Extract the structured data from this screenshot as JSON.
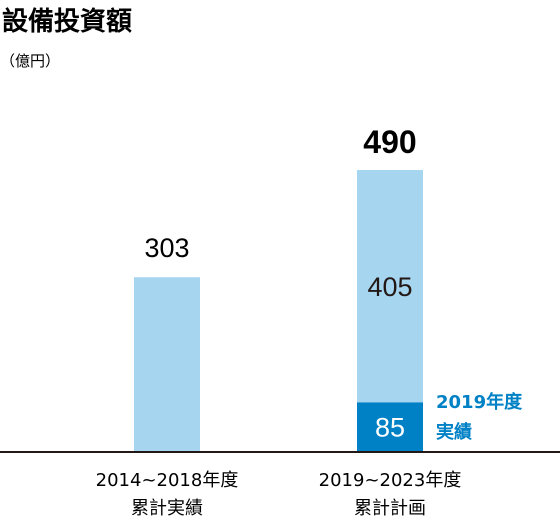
{
  "chart_data": {
    "type": "bar",
    "title": "設備投資額",
    "unit": "（億円）",
    "categories": [
      [
        "2014~2018年度",
        "累計実績"
      ],
      [
        "2019~2023年度",
        "累計計画"
      ]
    ],
    "series": [
      {
        "values": [
          303,
          85
        ]
      },
      {
        "values": [
          0,
          405
        ]
      }
    ],
    "totals": [
      303,
      490
    ],
    "segment_labels": [
      [
        "303",
        ""
      ],
      [
        "85",
        "405"
      ]
    ],
    "total_label": "490",
    "annotation": [
      "2019年度",
      "実績"
    ],
    "ylim": [
      0,
      560
    ],
    "colors": {
      "light": "#a5d5ef",
      "dark": "#0081c6",
      "annotation": "#0081c6",
      "axis": "#231815"
    }
  }
}
